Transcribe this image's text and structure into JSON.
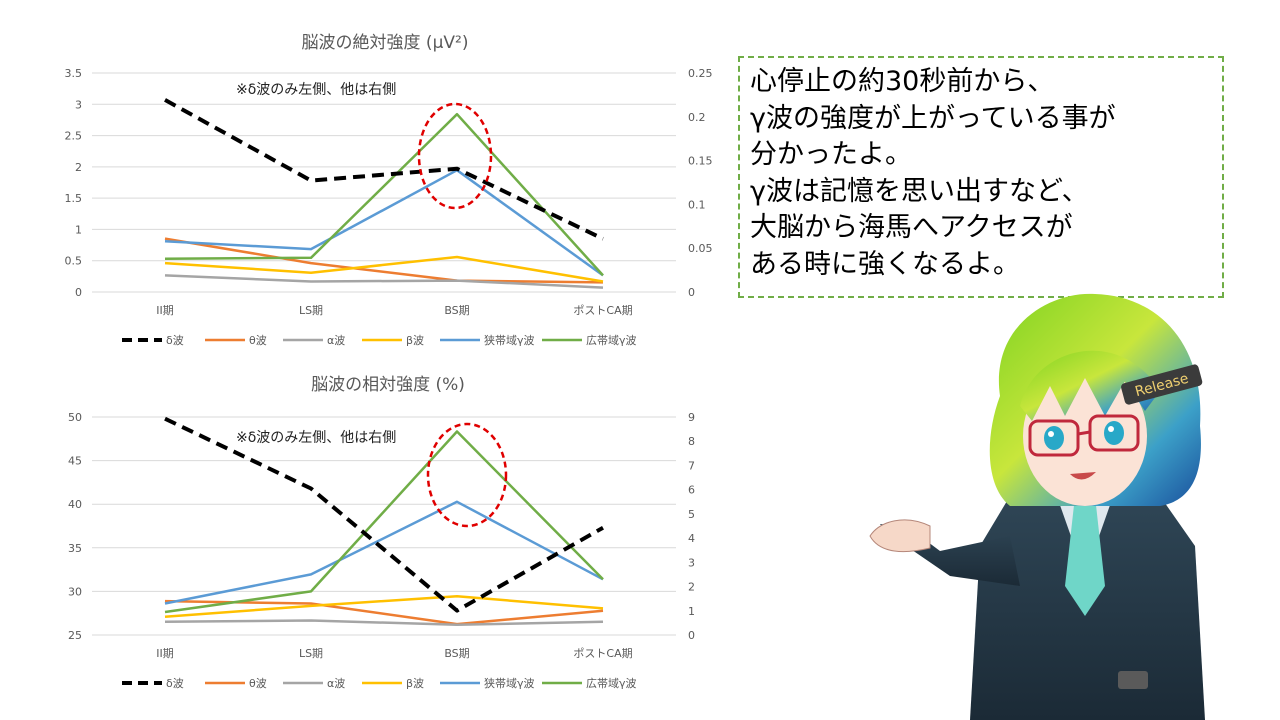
{
  "colors": {
    "delta": "#000000",
    "theta": "#ed7d31",
    "alpha": "#a5a5a5",
    "beta": "#ffc000",
    "narrow_gamma": "#5b9bd5",
    "wide_gamma": "#70ad47",
    "highlight": "#e00000",
    "box_border": "#70ad47"
  },
  "speech": {
    "lines": [
      "心停止の約30秒前から、",
      "γ波の強度が上がっている事が",
      "分かったよ。",
      "γ波は記憶を思い出すなど、",
      "大脳から海馬へアクセスが",
      "ある時に強くなるよ。"
    ]
  },
  "character": {
    "badge_text": "Release"
  },
  "chart_data": [
    {
      "type": "line",
      "title": "脳波の絶対強度 (μV²)",
      "annotation": "※δ波のみ左側、他は右側",
      "categories": [
        "II期",
        "LS期",
        "BS期",
        "ポストCA期"
      ],
      "left_axis": {
        "ylim": [
          0,
          3.5
        ],
        "ticks": [
          "0",
          "0.5",
          "1",
          "1.5",
          "2",
          "2.5",
          "3",
          "3.5"
        ]
      },
      "right_axis": {
        "ylim": [
          0,
          0.25
        ],
        "ticks": [
          "0",
          "0.05",
          "0.1",
          "0.15",
          "0.2",
          "0.25"
        ]
      },
      "grid": true,
      "legend_position": "bottom",
      "highlight": "BS期 広帯域γ波 peak circled",
      "series": [
        {
          "name": "δ波",
          "axis": "left",
          "dashed": true,
          "color_key": "delta",
          "values": [
            3.07,
            1.78,
            1.97,
            0.85
          ]
        },
        {
          "name": "θ波",
          "axis": "right",
          "color_key": "theta",
          "values": [
            0.061,
            0.033,
            0.013,
            0.011
          ]
        },
        {
          "name": "α波",
          "axis": "right",
          "color_key": "alpha",
          "values": [
            0.019,
            0.012,
            0.013,
            0.005
          ]
        },
        {
          "name": "β波",
          "axis": "right",
          "color_key": "beta",
          "values": [
            0.033,
            0.022,
            0.04,
            0.012
          ]
        },
        {
          "name": "狭帯域γ波",
          "axis": "right",
          "color_key": "narrow_gamma",
          "values": [
            0.058,
            0.049,
            0.139,
            0.019
          ]
        },
        {
          "name": "広帯域γ波",
          "axis": "right",
          "color_key": "wide_gamma",
          "values": [
            0.038,
            0.039,
            0.203,
            0.019
          ]
        }
      ]
    },
    {
      "type": "line",
      "title": "脳波の相対強度 (%)",
      "annotation": "※δ波のみ左側、他は右側",
      "categories": [
        "II期",
        "LS期",
        "BS期",
        "ポストCA期"
      ],
      "left_axis": {
        "ylim": [
          25,
          50
        ],
        "ticks": [
          "25",
          "30",
          "35",
          "40",
          "45",
          "50"
        ]
      },
      "right_axis": {
        "ylim": [
          0,
          9
        ],
        "ticks": [
          "0",
          "1",
          "2",
          "3",
          "4",
          "5",
          "6",
          "7",
          "8",
          "9"
        ]
      },
      "grid": true,
      "legend_position": "bottom",
      "highlight": "BS期 広帯域γ波 peak circled",
      "series": [
        {
          "name": "δ波",
          "axis": "left",
          "dashed": true,
          "color_key": "delta",
          "values": [
            49.8,
            41.8,
            27.8,
            37.3
          ]
        },
        {
          "name": "θ波",
          "axis": "right",
          "color_key": "theta",
          "values": [
            1.4,
            1.3,
            0.45,
            1.0
          ]
        },
        {
          "name": "α波",
          "axis": "right",
          "color_key": "alpha",
          "values": [
            0.55,
            0.6,
            0.42,
            0.55
          ]
        },
        {
          "name": "β波",
          "axis": "right",
          "color_key": "beta",
          "values": [
            0.75,
            1.2,
            1.6,
            1.1
          ]
        },
        {
          "name": "狭帯域γ波",
          "axis": "right",
          "color_key": "narrow_gamma",
          "values": [
            1.3,
            2.5,
            5.5,
            2.3
          ]
        },
        {
          "name": "広帯域γ波",
          "axis": "right",
          "color_key": "wide_gamma",
          "values": [
            0.95,
            1.8,
            8.4,
            2.3
          ]
        }
      ]
    }
  ]
}
